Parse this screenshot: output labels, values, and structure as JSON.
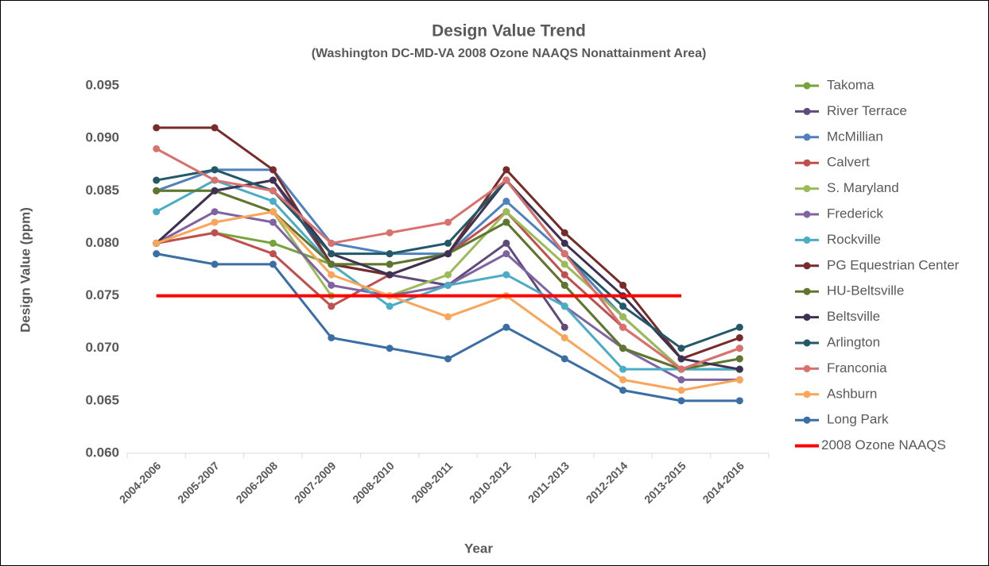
{
  "chart_data": {
    "type": "line",
    "title": "Design Value Trend",
    "subtitle": "(Washington DC-MD-VA 2008 Ozone NAAQS Nonattainment Area)",
    "x_label": "Year",
    "y_label": "Design Value (ppm)",
    "categories": [
      "2004-2006",
      "2005-2007",
      "2006-2008",
      "2007-2009",
      "2008-2010",
      "2009-2011",
      "2010-2012",
      "2011-2013",
      "2012-2014",
      "2013-2015",
      "2014-2016"
    ],
    "ylim": [
      0.06,
      0.095
    ],
    "yticks": [
      {
        "value": 0.06,
        "label": "0.060"
      },
      {
        "value": 0.065,
        "label": "0.065"
      },
      {
        "value": 0.07,
        "label": "0.070"
      },
      {
        "value": 0.075,
        "label": "0.075"
      },
      {
        "value": 0.08,
        "label": "0.080"
      },
      {
        "value": 0.085,
        "label": "0.085"
      },
      {
        "value": 0.09,
        "label": "0.090"
      },
      {
        "value": 0.095,
        "label": "0.095"
      }
    ],
    "grid": false,
    "legend": "right",
    "series": [
      {
        "name": "Takoma",
        "color": "#77a33a",
        "values": [
          0.08,
          0.081,
          0.08,
          0.078,
          0.078,
          0.079,
          0.082,
          0.076,
          0.07,
          0.068,
          0.069
        ]
      },
      {
        "name": "River Terrace",
        "color": "#604a7b",
        "values": [
          0.08,
          0.085,
          0.086,
          0.078,
          0.077,
          0.076,
          0.08,
          0.072,
          null,
          null,
          null
        ]
      },
      {
        "name": "McMillian",
        "color": "#4f81bd",
        "values": [
          0.085,
          0.087,
          0.087,
          0.08,
          0.079,
          0.079,
          0.084,
          0.079,
          0.073,
          0.068,
          0.068
        ]
      },
      {
        "name": "Calvert",
        "color": "#c0504d",
        "values": [
          0.08,
          0.081,
          0.079,
          0.074,
          0.077,
          0.079,
          0.083,
          0.077,
          0.072,
          0.068,
          0.07
        ]
      },
      {
        "name": "S. Maryland",
        "color": "#9bbb59",
        "values": [
          0.085,
          0.085,
          0.083,
          0.075,
          0.075,
          0.077,
          0.083,
          0.078,
          0.073,
          0.068,
          0.068
        ]
      },
      {
        "name": "Frederick",
        "color": "#8064a2",
        "values": [
          0.08,
          0.083,
          0.082,
          0.076,
          0.075,
          0.076,
          0.079,
          0.074,
          0.07,
          0.067,
          0.067
        ]
      },
      {
        "name": "Rockville",
        "color": "#4bacc6",
        "values": [
          0.083,
          0.086,
          0.084,
          0.078,
          0.074,
          0.076,
          0.077,
          0.074,
          0.068,
          0.068,
          0.068
        ]
      },
      {
        "name": "PG Equestrian Center",
        "color": "#772c2a",
        "values": [
          0.091,
          0.091,
          0.087,
          0.078,
          0.077,
          0.079,
          0.087,
          0.081,
          0.076,
          0.069,
          0.071
        ]
      },
      {
        "name": "HU-Beltsville",
        "color": "#5f7530",
        "values": [
          0.085,
          0.085,
          0.083,
          0.078,
          0.078,
          0.079,
          0.082,
          0.076,
          0.07,
          0.068,
          0.069
        ]
      },
      {
        "name": "Beltsville",
        "color": "#3f3151",
        "values": [
          0.08,
          0.085,
          0.086,
          0.079,
          0.077,
          0.079,
          0.086,
          0.08,
          0.075,
          0.069,
          0.068
        ]
      },
      {
        "name": "Arlington",
        "color": "#215968",
        "values": [
          0.086,
          0.087,
          0.085,
          0.079,
          0.079,
          0.08,
          0.086,
          0.079,
          0.074,
          0.07,
          0.072
        ]
      },
      {
        "name": "Franconia",
        "color": "#d9716e",
        "values": [
          0.089,
          0.086,
          0.085,
          0.08,
          0.081,
          0.082,
          0.086,
          0.079,
          0.072,
          0.068,
          0.07
        ]
      },
      {
        "name": "Ashburn",
        "color": "#f9a65a",
        "values": [
          0.08,
          0.082,
          0.083,
          0.077,
          0.075,
          0.073,
          0.075,
          0.071,
          0.067,
          0.066,
          0.067
        ]
      },
      {
        "name": "Long Park",
        "color": "#3a6ea5",
        "values": [
          0.079,
          0.078,
          0.078,
          0.071,
          0.07,
          0.069,
          0.072,
          0.069,
          0.066,
          0.065,
          0.065
        ]
      },
      {
        "name": "2008 Ozone NAAQS",
        "color": "#ff0000",
        "markers": false,
        "width": 4,
        "values": [
          0.075,
          0.075,
          0.075,
          0.075,
          0.075,
          0.075,
          0.075,
          0.075,
          0.075,
          0.075,
          null
        ]
      }
    ]
  }
}
